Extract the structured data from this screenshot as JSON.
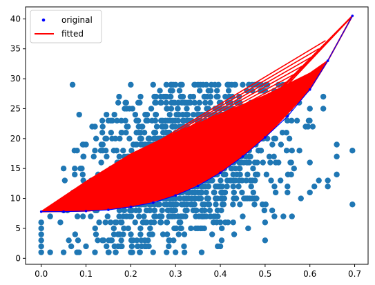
{
  "chart_data": {
    "type": "scatter",
    "title": "",
    "xlabel": "",
    "ylabel": "",
    "xlim": [
      -0.035,
      0.73
    ],
    "ylim": [
      -1.0,
      42.0
    ],
    "xticks": [
      0.0,
      0.1,
      0.2,
      0.3,
      0.4,
      0.5,
      0.6,
      0.7
    ],
    "xtick_labels": [
      "0.0",
      "0.1",
      "0.2",
      "0.3",
      "0.4",
      "0.5",
      "0.6",
      "0.7"
    ],
    "yticks": [
      0,
      5,
      10,
      15,
      20,
      25,
      30,
      35,
      40
    ],
    "ytick_labels": [
      "0",
      "5",
      "10",
      "15",
      "20",
      "25",
      "30",
      "35",
      "40"
    ],
    "grid": false,
    "legend": {
      "placement": "upper-left",
      "entries": [
        {
          "label": "original",
          "marker": "point",
          "color": "#0000ff"
        },
        {
          "label": "fitted",
          "marker": "line",
          "color": "#ff0000"
        }
      ]
    },
    "series": [
      {
        "kind": "scatter-cloud",
        "color": "#1f77b4",
        "description_points": [
          [
            0.07,
            29
          ],
          [
            0.15,
            23
          ],
          [
            0.12,
            22
          ],
          [
            0.2,
            29
          ],
          [
            0.25,
            29
          ],
          [
            0.3,
            29
          ],
          [
            0.38,
            29
          ],
          [
            0.45,
            29
          ],
          [
            0.5,
            28
          ],
          [
            0.54,
            29
          ],
          [
            0.57,
            27
          ],
          [
            0.6,
            25
          ],
          [
            0.63,
            27
          ],
          [
            0.63,
            25
          ],
          [
            0.66,
            19
          ],
          [
            0.66,
            17
          ],
          [
            0.66,
            14
          ],
          [
            0.64,
            12
          ],
          [
            0.64,
            13
          ],
          [
            0.695,
            18
          ],
          [
            0.695,
            9
          ],
          [
            0.62,
            13
          ],
          [
            0.61,
            12
          ],
          [
            0.58,
            10
          ],
          [
            0.55,
            12
          ],
          [
            0.5,
            3
          ],
          [
            0.4,
            2
          ],
          [
            0.35,
            5
          ],
          [
            0.3,
            1
          ],
          [
            0.32,
            1
          ],
          [
            0.28,
            1
          ],
          [
            0.25,
            1
          ],
          [
            0.22,
            1
          ],
          [
            0.2,
            1
          ],
          [
            0.18,
            2
          ],
          [
            0.15,
            1
          ],
          [
            0.12,
            1
          ],
          [
            0.1,
            2
          ],
          [
            0.08,
            1
          ],
          [
            0.05,
            1
          ],
          [
            0.02,
            1
          ],
          [
            0.0,
            1
          ],
          [
            0.0,
            2
          ],
          [
            0.0,
            3
          ],
          [
            0.0,
            4
          ],
          [
            0.0,
            5
          ],
          [
            0.0,
            6
          ],
          [
            0.02,
            7
          ],
          [
            0.05,
            8
          ],
          [
            0.05,
            15
          ],
          [
            0.08,
            18
          ],
          [
            0.1,
            19
          ],
          [
            0.12,
            18
          ],
          [
            0.18,
            21
          ],
          [
            0.22,
            26
          ],
          [
            0.28,
            27
          ],
          [
            0.33,
            26
          ],
          [
            0.4,
            25
          ],
          [
            0.48,
            24
          ],
          [
            0.52,
            20
          ],
          [
            0.56,
            18
          ],
          [
            0.6,
            16
          ],
          [
            0.6,
            11
          ],
          [
            0.56,
            7
          ],
          [
            0.5,
            6
          ],
          [
            0.45,
            7
          ],
          [
            0.4,
            6
          ]
        ]
      },
      {
        "kind": "original",
        "color": "#0000ff",
        "x": [
          0.0,
          0.05,
          0.1,
          0.15,
          0.2,
          0.25,
          0.3,
          0.35,
          0.4,
          0.45,
          0.5,
          0.55,
          0.6,
          0.64,
          0.695
        ],
        "y": [
          7.8,
          7.8,
          7.9,
          8.1,
          8.6,
          9.3,
          10.5,
          12.1,
          14.3,
          17.0,
          20.2,
          23.7,
          28.2,
          33.0,
          40.5
        ]
      },
      {
        "kind": "fitted",
        "color": "#ff0000",
        "upper_x": [
          0.0,
          0.1,
          0.2,
          0.3,
          0.4,
          0.5,
          0.6,
          0.64,
          0.695
        ],
        "upper_y": [
          7.8,
          12.8,
          17.4,
          21.0,
          24.1,
          27.2,
          30.9,
          33.0,
          40.5
        ],
        "lower_x": [
          0.0,
          0.1,
          0.2,
          0.3,
          0.4,
          0.5,
          0.6,
          0.64
        ],
        "lower_y": [
          7.8,
          7.9,
          8.6,
          10.5,
          14.3,
          20.2,
          28.2,
          33.0
        ]
      }
    ]
  }
}
